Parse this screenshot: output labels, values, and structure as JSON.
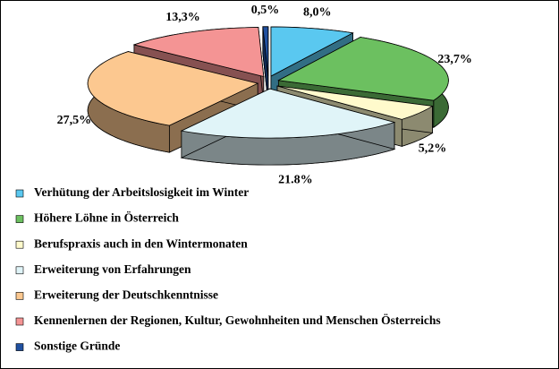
{
  "chart_data": {
    "type": "pie",
    "categories": [
      "Verhütung der Arbeitslosigkeit im Winter",
      "Höhere Löhne in Österreich",
      "Berufspraxis auch in den Wintermonaten",
      "Erweiterung von Erfahrungen",
      "Erweiterung der Deutschkenntnisse",
      "Kennenlernen der Regionen, Kultur, Gewohnheiten und Menschen Österreichs",
      "Sonstige Gründe"
    ],
    "values": [
      8.0,
      23.7,
      5.2,
      21.8,
      27.5,
      13.3,
      0.5
    ],
    "value_labels": [
      "8,0%",
      "23,7%",
      "5,2%",
      "21.8%",
      "27,5%",
      "13,3%",
      "0,5%"
    ],
    "colors": [
      "#5ac8f0",
      "#6cc060",
      "#fffacc",
      "#e0f4f8",
      "#fcc890",
      "#f49494",
      "#2050a0"
    ],
    "legend": "bottom-left"
  }
}
